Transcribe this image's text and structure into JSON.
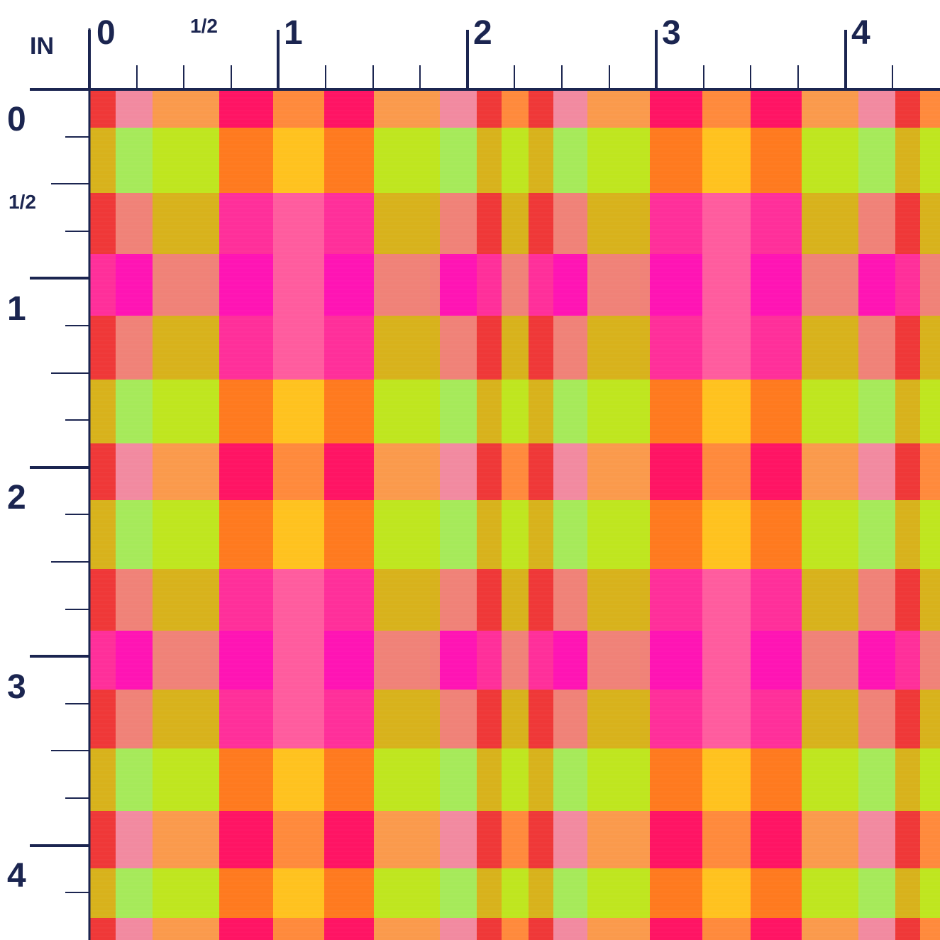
{
  "ruler": {
    "unit_label": "IN",
    "top_labels": [
      "0",
      "1/2",
      "1",
      "2",
      "3",
      "4"
    ],
    "left_labels": [
      "0",
      "1/2",
      "1",
      "2",
      "3",
      "4"
    ],
    "color": "#1b2550"
  },
  "swatch": {
    "pattern": "gingham plaid",
    "colors": {
      "lime": "#bfe61f",
      "light_green": "#a6ea5a",
      "orange": "#ff7a1f",
      "yellow": "#ffc21f",
      "pink": "#ff5c9e",
      "hot_pink": "#ff2f9a",
      "magenta": "#ff14b4",
      "red": "#ef3838",
      "light_pink": "#f28aa0",
      "mustard": "#d8b21c",
      "salmon": "#f08278",
      "peach": "#fa9a4c",
      "crimson": "#ff1464",
      "coral": "#ff8a3c"
    }
  }
}
